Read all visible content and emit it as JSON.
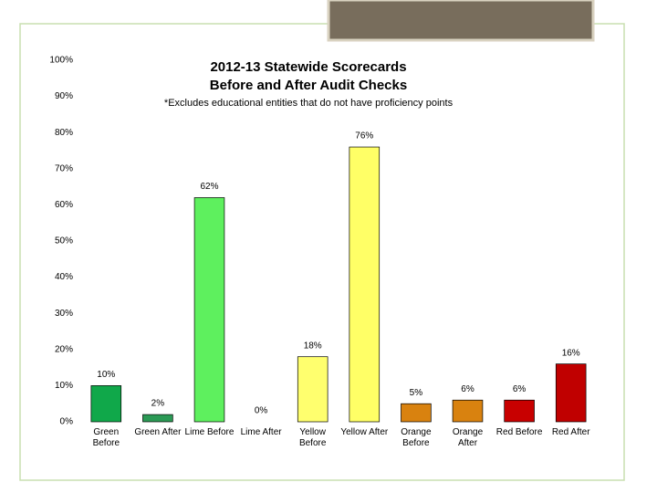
{
  "chart_data": {
    "type": "bar",
    "title": "2012-13 Statewide Scorecards",
    "subtitle": "Before and After Audit Checks",
    "note": "*Excludes  educational entities that do not have proficiency points",
    "categories": [
      "Green Before",
      "Green After",
      "Lime Before",
      "Lime After",
      "Yellow Before",
      "Yellow After",
      "Orange Before",
      "Orange After",
      "Red Before",
      "Red After"
    ],
    "values": [
      10,
      2,
      62,
      0,
      18,
      76,
      5,
      6,
      6,
      16
    ],
    "value_labels": [
      "10%",
      "2%",
      "62%",
      "0%",
      "18%",
      "76%",
      "5%",
      "6%",
      "6%",
      "16%"
    ],
    "colors": [
      "#10a84a",
      "#2b9a55",
      "#5ef05e",
      "#88f088",
      "#ffff6e",
      "#ffff66",
      "#d9820f",
      "#d9820f",
      "#c80000",
      "#c00000"
    ],
    "ylim": [
      0,
      100
    ],
    "yticks": [
      {
        "value": 0,
        "label": "0%"
      },
      {
        "value": 10,
        "label": "10%"
      },
      {
        "value": 20,
        "label": "20%"
      },
      {
        "value": 30,
        "label": "30%"
      },
      {
        "value": 40,
        "label": "40%"
      },
      {
        "value": 50,
        "label": "50%"
      },
      {
        "value": 60,
        "label": "60%"
      },
      {
        "value": 70,
        "label": "70%"
      },
      {
        "value": 80,
        "label": "80%"
      },
      {
        "value": 90,
        "label": "90%"
      },
      {
        "value": 100,
        "label": "100%"
      }
    ],
    "grid": false
  }
}
